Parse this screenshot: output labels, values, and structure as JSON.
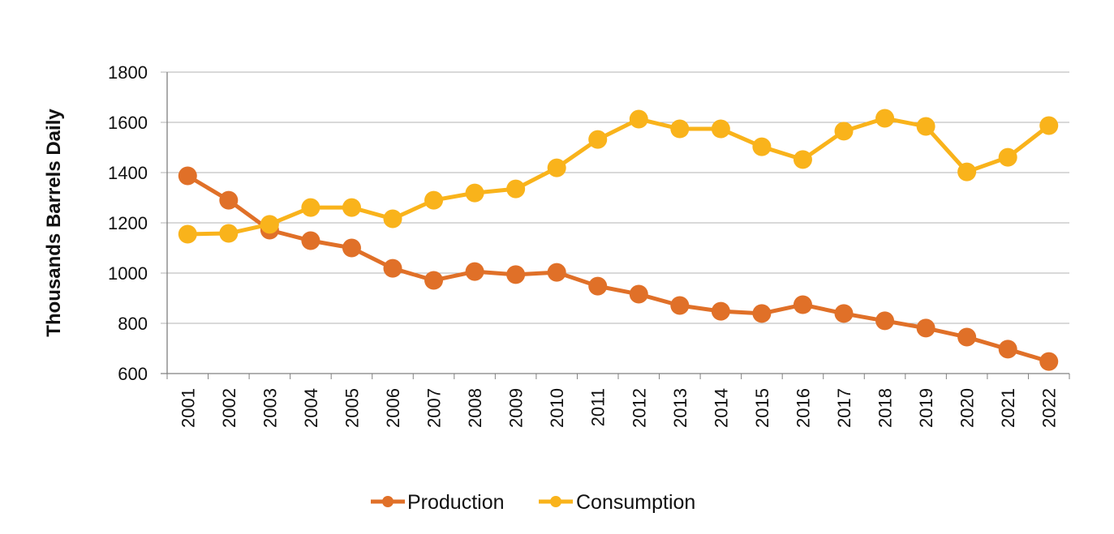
{
  "chart_data": {
    "type": "line",
    "title": "",
    "xlabel": "",
    "ylabel": "Thousands Barrels Daily",
    "ylim": [
      600,
      1800
    ],
    "yticks": [
      600,
      800,
      1000,
      1200,
      1400,
      1600,
      1800
    ],
    "grid": true,
    "legend_position": "bottom",
    "categories": [
      "2001",
      "2002",
      "2003",
      "2004",
      "2005",
      "2006",
      "2007",
      "2008",
      "2009",
      "2010",
      "2011",
      "2012",
      "2013",
      "2014",
      "2015",
      "2016",
      "2017",
      "2018",
      "2019",
      "2020",
      "2021",
      "2022"
    ],
    "series": [
      {
        "name": "Production",
        "color": "#E07028",
        "values": [
          1387,
          1290,
          1171,
          1129,
          1100,
          1019,
          971,
          1006,
          994,
          1003,
          948,
          916,
          871,
          848,
          839,
          874,
          839,
          810,
          781,
          745,
          697,
          648
        ]
      },
      {
        "name": "Consumption",
        "color": "#F9B31B",
        "values": [
          1155,
          1158,
          1194,
          1261,
          1261,
          1216,
          1290,
          1319,
          1335,
          1419,
          1532,
          1613,
          1574,
          1574,
          1503,
          1452,
          1565,
          1616,
          1584,
          1403,
          1461,
          1587
        ]
      }
    ]
  }
}
